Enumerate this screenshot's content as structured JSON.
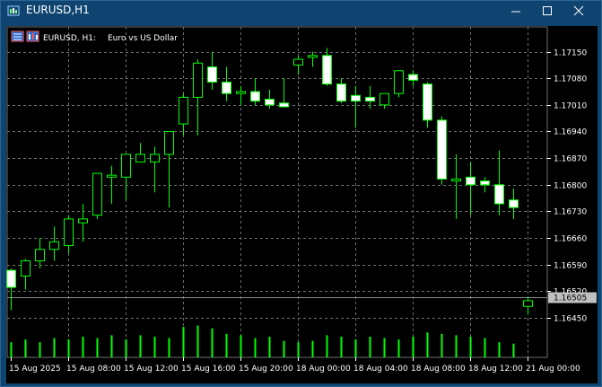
{
  "window": {
    "title": "EURUSD,H1"
  },
  "colors": {
    "bull_body": "#000000",
    "bear_body": "#ffffff",
    "candle_outline": "#00ff00",
    "volume": "#00ff00",
    "grid": "#6e6e6e",
    "background": "#000000",
    "text": "#ffffff",
    "current_price_line": "#8c8c8c",
    "current_price_tag": "#c0c0c0"
  },
  "chart_data": {
    "type": "candlestick",
    "symbol_label": "EURUSD, H1:",
    "description": "Euro vs US Dollar",
    "y_ticks": [
      "1.17150",
      "1.17080",
      "1.17010",
      "1.16940",
      "1.16870",
      "1.16800",
      "1.16730",
      "1.16660",
      "1.16590",
      "1.16520",
      "1.16450"
    ],
    "ylim": [
      1.16405,
      1.17175
    ],
    "current_price": "1.16505",
    "x_labels": [
      {
        "label": "15 Aug 2025",
        "index": 0
      },
      {
        "label": "15 Aug 08:00",
        "index": 4
      },
      {
        "label": "15 Aug 12:00",
        "index": 8
      },
      {
        "label": "15 Aug 16:00",
        "index": 12
      },
      {
        "label": "15 Aug 20:00",
        "index": 16
      },
      {
        "label": "18 Aug 00:00",
        "index": 20
      },
      {
        "label": "18 Aug 04:00",
        "index": 24
      },
      {
        "label": "18 Aug 08:00",
        "index": 28
      },
      {
        "label": "18 Aug 12:00",
        "index": 32
      },
      {
        "label": "21 Aug 00:00",
        "index": 36
      }
    ],
    "candles": [
      {
        "o": 1.16575,
        "h": 1.1658,
        "l": 1.1647,
        "c": 1.1653
      },
      {
        "o": 1.1656,
        "h": 1.16605,
        "l": 1.16525,
        "c": 1.166
      },
      {
        "o": 1.166,
        "h": 1.1666,
        "l": 1.1658,
        "c": 1.1663
      },
      {
        "o": 1.1663,
        "h": 1.1669,
        "l": 1.166,
        "c": 1.1665
      },
      {
        "o": 1.1664,
        "h": 1.1672,
        "l": 1.1662,
        "c": 1.1671
      },
      {
        "o": 1.167,
        "h": 1.1675,
        "l": 1.1665,
        "c": 1.1671
      },
      {
        "o": 1.1672,
        "h": 1.1683,
        "l": 1.1671,
        "c": 1.1683
      },
      {
        "o": 1.1682,
        "h": 1.1685,
        "l": 1.1675,
        "c": 1.16825
      },
      {
        "o": 1.1682,
        "h": 1.1688,
        "l": 1.1676,
        "c": 1.1688
      },
      {
        "o": 1.1686,
        "h": 1.1691,
        "l": 1.1686,
        "c": 1.1688
      },
      {
        "o": 1.1686,
        "h": 1.169,
        "l": 1.1678,
        "c": 1.1688
      },
      {
        "o": 1.1688,
        "h": 1.1694,
        "l": 1.1674,
        "c": 1.1694
      },
      {
        "o": 1.1696,
        "h": 1.1704,
        "l": 1.1693,
        "c": 1.1703
      },
      {
        "o": 1.1703,
        "h": 1.1713,
        "l": 1.1693,
        "c": 1.1712
      },
      {
        "o": 1.1711,
        "h": 1.1715,
        "l": 1.1705,
        "c": 1.1707
      },
      {
        "o": 1.1707,
        "h": 1.1711,
        "l": 1.1702,
        "c": 1.1704
      },
      {
        "o": 1.1704,
        "h": 1.1706,
        "l": 1.1701,
        "c": 1.17045
      },
      {
        "o": 1.17045,
        "h": 1.1708,
        "l": 1.1701,
        "c": 1.1702
      },
      {
        "o": 1.17025,
        "h": 1.1705,
        "l": 1.17,
        "c": 1.1701
      },
      {
        "o": 1.17015,
        "h": 1.1708,
        "l": 1.17005,
        "c": 1.17005
      },
      {
        "o": 1.17115,
        "h": 1.1714,
        "l": 1.1709,
        "c": 1.1713
      },
      {
        "o": 1.1714,
        "h": 1.1715,
        "l": 1.1711,
        "c": 1.1714
      },
      {
        "o": 1.1714,
        "h": 1.1716,
        "l": 1.1706,
        "c": 1.17065
      },
      {
        "o": 1.17065,
        "h": 1.1708,
        "l": 1.17015,
        "c": 1.1702
      },
      {
        "o": 1.17035,
        "h": 1.1706,
        "l": 1.1695,
        "c": 1.1702
      },
      {
        "o": 1.1703,
        "h": 1.1706,
        "l": 1.17,
        "c": 1.1702
      },
      {
        "o": 1.1701,
        "h": 1.1704,
        "l": 1.17,
        "c": 1.1704
      },
      {
        "o": 1.1704,
        "h": 1.171,
        "l": 1.1703,
        "c": 1.171
      },
      {
        "o": 1.1709,
        "h": 1.171,
        "l": 1.1706,
        "c": 1.17075
      },
      {
        "o": 1.17065,
        "h": 1.1707,
        "l": 1.1695,
        "c": 1.1697
      },
      {
        "o": 1.1697,
        "h": 1.1698,
        "l": 1.168,
        "c": 1.16815
      },
      {
        "o": 1.1681,
        "h": 1.1688,
        "l": 1.1671,
        "c": 1.16815
      },
      {
        "o": 1.1682,
        "h": 1.1686,
        "l": 1.1672,
        "c": 1.168
      },
      {
        "o": 1.1681,
        "h": 1.1682,
        "l": 1.1678,
        "c": 1.168
      },
      {
        "o": 1.168,
        "h": 1.1689,
        "l": 1.1672,
        "c": 1.1675
      },
      {
        "o": 1.1676,
        "h": 1.1679,
        "l": 1.1671,
        "c": 1.1674
      },
      {
        "o": 1.1648,
        "h": 1.16505,
        "l": 1.1646,
        "c": 1.16495
      }
    ],
    "volumes": [
      0.35,
      0.45,
      0.35,
      0.5,
      0.45,
      0.55,
      0.5,
      0.6,
      0.45,
      0.6,
      0.55,
      0.5,
      0.9,
      0.95,
      0.85,
      0.65,
      0.6,
      0.5,
      0.55,
      0.4,
      0.35,
      0.4,
      0.6,
      0.55,
      0.45,
      0.55,
      0.5,
      0.45,
      0.55,
      0.7,
      0.65,
      0.6,
      0.55,
      0.5,
      0.35,
      0.3,
      0.0
    ],
    "grid": true
  }
}
